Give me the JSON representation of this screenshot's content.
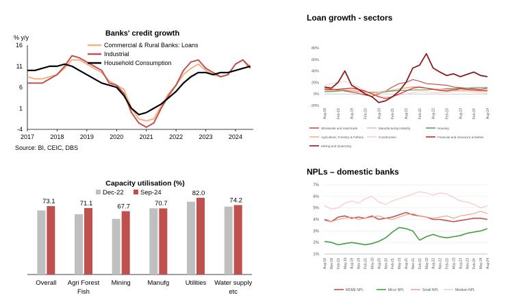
{
  "chart_data": [
    {
      "type": "line",
      "title": "Banks' credit growth",
      "ylabel": "% y/y",
      "source": "Source: BI, CEIC, DBS",
      "ylim": [
        -4,
        16
      ],
      "yticks": [
        "16",
        "11",
        "6",
        "1",
        "-4"
      ],
      "xticks": [
        "2017",
        "2018",
        "2019",
        "2020",
        "2021",
        "2022",
        "2023",
        "2024"
      ],
      "legend_position": "top-right",
      "colors": {
        "loans": "#F4B183",
        "industrial": "#C0504D",
        "household": "#000000"
      },
      "series": [
        {
          "name": "Commercial & Rural Banks: Loans",
          "x": [
            2017.0,
            2017.25,
            2017.5,
            2017.75,
            2018.0,
            2018.25,
            2018.5,
            2018.75,
            2019.0,
            2019.25,
            2019.5,
            2019.75,
            2020.0,
            2020.25,
            2020.5,
            2020.75,
            2021.0,
            2021.25,
            2021.5,
            2021.75,
            2022.0,
            2022.25,
            2022.5,
            2022.75,
            2023.0,
            2023.25,
            2023.5,
            2023.75,
            2024.0,
            2024.25,
            2024.5
          ],
          "values": [
            8.5,
            8.0,
            8.0,
            8.5,
            9.0,
            10.5,
            12.5,
            12.5,
            11.5,
            10.5,
            9.5,
            7.5,
            6.5,
            5.5,
            1.0,
            -1.5,
            -2.0,
            -1.5,
            1.5,
            4.5,
            6.5,
            9.0,
            10.5,
            11.5,
            10.0,
            9.0,
            8.5,
            9.0,
            11.5,
            12.5,
            11.0
          ]
        },
        {
          "name": "Industrial",
          "x": [
            2017.0,
            2017.25,
            2017.5,
            2017.75,
            2018.0,
            2018.25,
            2018.5,
            2018.75,
            2019.0,
            2019.25,
            2019.5,
            2019.75,
            2020.0,
            2020.25,
            2020.5,
            2020.75,
            2021.0,
            2021.25,
            2021.5,
            2021.75,
            2022.0,
            2022.25,
            2022.5,
            2022.75,
            2023.0,
            2023.25,
            2023.5,
            2023.75,
            2024.0,
            2024.25,
            2024.5
          ],
          "values": [
            7.0,
            7.0,
            7.0,
            8.0,
            9.0,
            11.0,
            13.5,
            13.0,
            12.0,
            11.0,
            10.0,
            7.0,
            6.5,
            4.5,
            0.0,
            -2.5,
            -3.5,
            -2.5,
            1.0,
            4.0,
            6.5,
            10.0,
            12.0,
            12.5,
            10.5,
            9.5,
            8.5,
            9.0,
            11.5,
            12.5,
            10.5
          ]
        },
        {
          "name": "Household Consumption",
          "x": [
            2017.0,
            2017.25,
            2017.5,
            2017.75,
            2018.0,
            2018.25,
            2018.5,
            2018.75,
            2019.0,
            2019.25,
            2019.5,
            2019.75,
            2020.0,
            2020.25,
            2020.5,
            2020.75,
            2021.0,
            2021.25,
            2021.5,
            2021.75,
            2022.0,
            2022.25,
            2022.5,
            2022.75,
            2023.0,
            2023.25,
            2023.5,
            2023.75,
            2024.0,
            2024.25,
            2024.5
          ],
          "values": [
            10.0,
            10.0,
            10.5,
            11.0,
            11.0,
            11.5,
            11.0,
            10.0,
            9.0,
            8.0,
            7.0,
            6.5,
            6.0,
            4.0,
            1.0,
            -0.5,
            0.0,
            1.0,
            2.0,
            3.5,
            5.0,
            7.0,
            8.5,
            9.5,
            9.5,
            9.0,
            9.5,
            9.5,
            10.0,
            10.5,
            11.0
          ]
        }
      ]
    },
    {
      "type": "line",
      "title": "Loan growth - sectors",
      "ylim": [
        -20,
        80
      ],
      "yticks": [
        "80%",
        "60%",
        "40%",
        "20%",
        "0%",
        "-20%"
      ],
      "xticks": [
        "Aug-18",
        "Feb-19",
        "Aug-19",
        "Feb-20",
        "Aug-20",
        "Feb-21",
        "Aug-21",
        "Feb-22",
        "Aug-22",
        "Feb-23",
        "Aug-23",
        "Feb-24",
        "Aug-24"
      ],
      "colors": {
        "wholesale": "#C0504D",
        "manufacturing": "#F4B8B8",
        "housing": "#4EA84E",
        "agriculture": "#F4B183",
        "construction": "#F8CBCB",
        "financial": "#E02020",
        "mining": "#8B1A1A"
      },
      "series": [
        {
          "name": "Wholesale and retail trade",
          "values": [
            10,
            8,
            7,
            5,
            3,
            1,
            -2,
            -4,
            0,
            5,
            12,
            18,
            20,
            25,
            22,
            18,
            17,
            16,
            15,
            12,
            11,
            10,
            9,
            8,
            10
          ]
        },
        {
          "name": "Manufacturing industry",
          "values": [
            6,
            5,
            6,
            7,
            7,
            6,
            4,
            2,
            1,
            3,
            6,
            9,
            11,
            13,
            12,
            10,
            8,
            7,
            6,
            6,
            5,
            6,
            7,
            6,
            5
          ]
        },
        {
          "name": "Housing",
          "values": [
            4,
            4,
            5,
            6,
            5,
            4,
            3,
            3,
            3,
            4,
            5,
            6,
            6,
            7,
            7,
            7,
            8,
            8,
            9,
            9,
            10,
            10,
            11,
            11,
            11
          ]
        },
        {
          "name": "Agriculture, Forestry & Fishery",
          "values": [
            10,
            9,
            8,
            7,
            5,
            4,
            3,
            2,
            3,
            5,
            7,
            9,
            10,
            12,
            11,
            10,
            9,
            8,
            8,
            7,
            6,
            6,
            5,
            5,
            4
          ]
        },
        {
          "name": "Construction",
          "values": [
            15,
            18,
            20,
            22,
            18,
            12,
            5,
            0,
            -3,
            -5,
            -4,
            -2,
            0,
            2,
            4,
            3,
            2,
            2,
            3,
            4,
            5,
            4,
            3,
            2,
            1
          ]
        },
        {
          "name": "Financial and insurance activities",
          "values": [
            8,
            7,
            8,
            9,
            10,
            8,
            5,
            0,
            -5,
            -8,
            -5,
            0,
            5,
            10,
            12,
            10,
            8,
            6,
            5,
            7,
            9,
            8,
            7,
            6,
            6
          ]
        },
        {
          "name": "Mining and Quarrying",
          "values": [
            12,
            10,
            20,
            40,
            15,
            8,
            0,
            -5,
            -15,
            -12,
            -5,
            5,
            20,
            45,
            50,
            70,
            45,
            38,
            32,
            35,
            30,
            34,
            38,
            32,
            30
          ]
        }
      ]
    },
    {
      "type": "bar",
      "title": "Capacity utilisation (%)",
      "ylim": [
        0,
        90
      ],
      "categories": [
        "Overall",
        "Agri Forest Fish",
        "Mining",
        "Manufg",
        "Utilities",
        "Water supply etc"
      ],
      "legend_position": "top",
      "colors": {
        "dec22": "#BFBFBF",
        "sep24": "#C0504D"
      },
      "series": [
        {
          "name": "Dec-22",
          "values": [
            68.5,
            64.5,
            59.5,
            70.8,
            77.8,
            72.6
          ]
        },
        {
          "name": "Sep-24",
          "values": [
            73.1,
            71.1,
            67.7,
            70.7,
            82.0,
            74.2
          ]
        }
      ],
      "data_labels": [
        "73.1",
        "71.1",
        "67.7",
        "70.7",
        "82.0",
        "74.2"
      ]
    },
    {
      "type": "line",
      "title": "NPLs – domestic banks",
      "ylim": [
        1,
        7
      ],
      "yticks": [
        "7%",
        "6%",
        "5%",
        "4%",
        "3%",
        "2%",
        "1%"
      ],
      "xticks": [
        "Aug-18",
        "Nov-18",
        "Feb-19",
        "May-19",
        "Aug-19",
        "Nov-19",
        "Feb-20",
        "May-20",
        "Aug-20",
        "Nov-20",
        "Feb-21",
        "May-21",
        "Aug-21",
        "Nov-21",
        "Feb-22",
        "May-22",
        "Aug-22",
        "Nov-22",
        "Feb-23",
        "May-23",
        "Aug-23",
        "Nov-23",
        "Feb-24",
        "May-24",
        "Aug-24"
      ],
      "colors": {
        "msme": "#C0504D",
        "micro": "#3CA03C",
        "small": "#F4A28C",
        "medium": "#F8C8C8"
      },
      "series": [
        {
          "name": "MSME NPL",
          "values": [
            4.0,
            3.8,
            4.2,
            4.3,
            4.1,
            4.2,
            4.1,
            4.3,
            4.0,
            4.1,
            4.2,
            4.4,
            4.6,
            4.4,
            4.3,
            4.2,
            4.0,
            4.0,
            3.9,
            3.8,
            3.9,
            4.0,
            4.1,
            4.1,
            4.0
          ]
        },
        {
          "name": "Micro NPL",
          "values": [
            2.1,
            2.0,
            1.8,
            1.9,
            2.0,
            1.9,
            1.8,
            1.9,
            2.1,
            2.4,
            2.9,
            3.3,
            3.2,
            3.0,
            2.2,
            2.5,
            2.7,
            2.5,
            2.4,
            2.5,
            2.6,
            2.8,
            2.9,
            3.0,
            3.2
          ]
        },
        {
          "name": "Small NPL",
          "values": [
            3.9,
            3.8,
            4.0,
            4.1,
            4.2,
            4.0,
            4.1,
            4.2,
            4.3,
            4.1,
            4.0,
            4.2,
            4.4,
            4.5,
            4.3,
            4.2,
            4.1,
            4.2,
            4.3,
            4.1,
            4.3,
            4.4,
            4.5,
            4.7,
            4.5
          ]
        },
        {
          "name": "Medium NPL",
          "values": [
            5.2,
            4.9,
            5.0,
            5.4,
            5.6,
            5.4,
            5.8,
            6.0,
            5.5,
            5.3,
            5.6,
            5.8,
            6.0,
            6.2,
            6.4,
            6.3,
            6.1,
            6.3,
            6.2,
            5.9,
            5.6,
            5.5,
            5.3,
            5.0,
            5.2
          ]
        }
      ]
    }
  ]
}
